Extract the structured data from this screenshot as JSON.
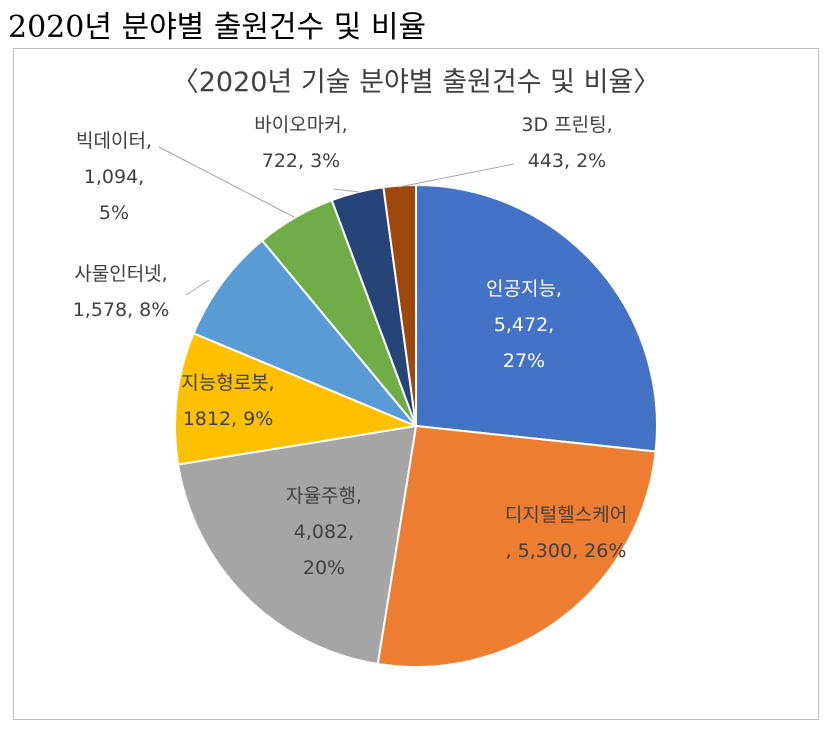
{
  "heading": "2020년 분야별 출원건수 및 비율",
  "chart_data": {
    "type": "pie",
    "title": "〈2020년 기술 분야별 출원건수 및 비율〉",
    "categories": [
      "인공지능",
      "디지털헬스케어",
      "자율주행",
      "지능형로봇",
      "사물인터넷",
      "빅데이터",
      "바이오마커",
      "3D 프린팅"
    ],
    "values": [
      5472,
      5300,
      4082,
      1812,
      1578,
      1094,
      722,
      443
    ],
    "percents": [
      27,
      26,
      20,
      9,
      8,
      5,
      3,
      2
    ],
    "colors": [
      "#4472C4",
      "#ED7D31",
      "#A5A5A5",
      "#FFC000",
      "#5B9BD5",
      "#70AD47",
      "#264478",
      "#9E480E"
    ],
    "labels": [
      {
        "lines": [
          "인공지능,",
          "5,472,",
          "27%"
        ]
      },
      {
        "lines": [
          "디지털헬스케어",
          ", 5,300, 26%"
        ]
      },
      {
        "lines": [
          "자율주행,",
          "4,082,",
          "20%"
        ]
      },
      {
        "lines": [
          "지능형로봇,",
          "1812, 9%"
        ]
      },
      {
        "lines": [
          "사물인터넷,",
          "1,578, 8%"
        ]
      },
      {
        "lines": [
          "빅데이터,",
          "1,094,",
          "5%"
        ]
      },
      {
        "lines": [
          "바이오마커,",
          "722, 3%"
        ]
      },
      {
        "lines": [
          "3D 프린팅,",
          "443, 2%"
        ]
      }
    ],
    "label_color_inside": "#ffffff",
    "label_color_outside": "#404040",
    "leader_line_color": "#a6a6a6",
    "legend": "none"
  }
}
